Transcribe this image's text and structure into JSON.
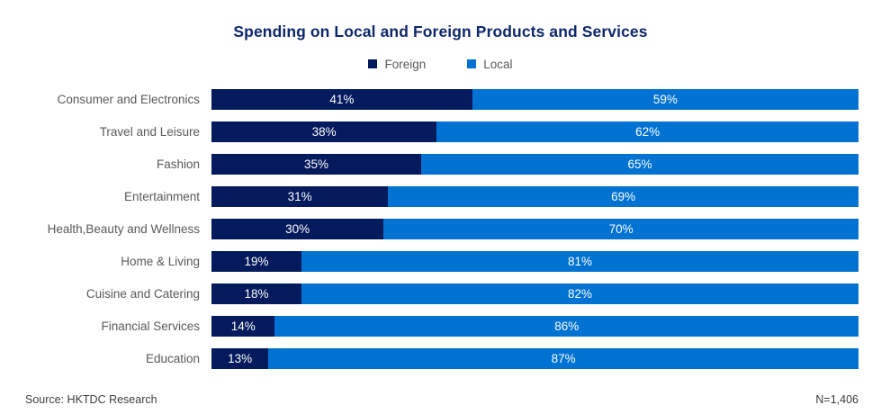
{
  "title": "Spending on Local and Foreign Products and Services",
  "footer": {
    "source": "Source: HKTDC Research",
    "sample_size": "N=1,406"
  },
  "chart_data": {
    "type": "bar",
    "orientation": "horizontal-stacked-100pct",
    "title": "Spending on Local and Foreign Products and Services",
    "categories": [
      "Consumer and Electronics",
      "Travel and Leisure",
      "Fashion",
      "Entertainment",
      "Health,Beauty and Wellness",
      "Home & Living",
      "Cuisine and Catering",
      "Financial Services",
      "Education"
    ],
    "series": [
      {
        "name": "Foreign",
        "color": "#031a5c",
        "values": [
          41,
          38,
          35,
          31,
          30,
          19,
          18,
          14,
          13
        ]
      },
      {
        "name": "Local",
        "color": "#0072d2",
        "values": [
          59,
          62,
          65,
          69,
          70,
          81,
          82,
          86,
          87
        ]
      }
    ],
    "value_suffix": "%",
    "value_label_color": "#ffffff",
    "legend_position": "top-center",
    "grid": false,
    "xlim": [
      0,
      100
    ],
    "foreign_visual_width_pct": [
      40.3,
      34.8,
      32.4,
      27.3,
      26.6,
      13.9,
      13.9,
      9.8,
      8.8
    ]
  }
}
